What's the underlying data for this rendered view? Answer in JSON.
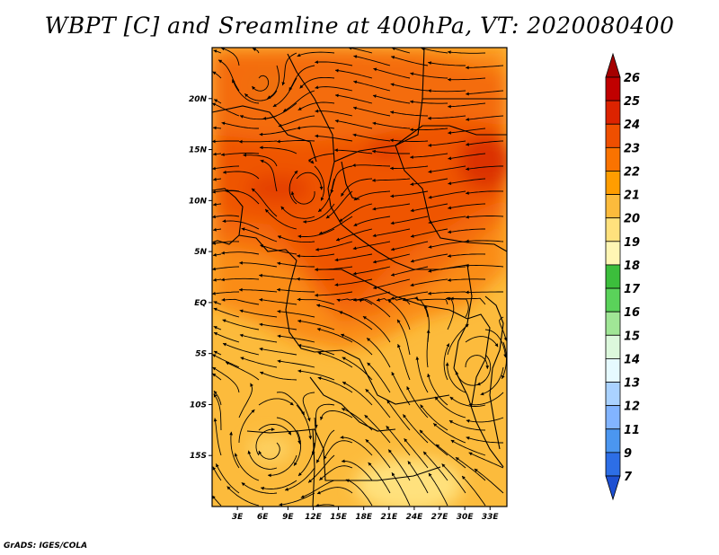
{
  "title": "WBPT [C] and Sreamline at 400hPa, VT: 2020080400",
  "credit": "GrADS: IGES/COLA",
  "map": {
    "lon_range": [
      0,
      35
    ],
    "lat_range": [
      -20,
      25
    ],
    "lon_ticks": [
      {
        "value": 3,
        "label": "3E"
      },
      {
        "value": 6,
        "label": "6E"
      },
      {
        "value": 9,
        "label": "9E"
      },
      {
        "value": 12,
        "label": "12E"
      },
      {
        "value": 15,
        "label": "15E"
      },
      {
        "value": 18,
        "label": "18E"
      },
      {
        "value": 21,
        "label": "21E"
      },
      {
        "value": 24,
        "label": "24E"
      },
      {
        "value": 27,
        "label": "27E"
      },
      {
        "value": 30,
        "label": "30E"
      },
      {
        "value": 33,
        "label": "33E"
      }
    ],
    "lat_ticks": [
      {
        "value": 20,
        "label": "20N"
      },
      {
        "value": 15,
        "label": "15N"
      },
      {
        "value": 10,
        "label": "10N"
      },
      {
        "value": 5,
        "label": "5N"
      },
      {
        "value": 0,
        "label": "EQ"
      },
      {
        "value": -5,
        "label": "5S"
      },
      {
        "value": -10,
        "label": "10S"
      },
      {
        "value": -15,
        "label": "15S"
      }
    ]
  },
  "colorbar": {
    "levels": [
      {
        "label": "26",
        "color": "#a50000"
      },
      {
        "label": "25",
        "color": "#c00000"
      },
      {
        "label": "24",
        "color": "#dc2300"
      },
      {
        "label": "23",
        "color": "#ef4f00"
      },
      {
        "label": "22",
        "color": "#fa7300"
      },
      {
        "label": "21",
        "color": "#ff9d00"
      },
      {
        "label": "20",
        "color": "#fcbb3c"
      },
      {
        "label": "19",
        "color": "#ffe17d"
      },
      {
        "label": "18",
        "color": "#fff6b4"
      },
      {
        "label": "17",
        "color": "#3cbe3c"
      },
      {
        "label": "16",
        "color": "#5ad25a"
      },
      {
        "label": "15",
        "color": "#a0e696"
      },
      {
        "label": "14",
        "color": "#dcf8dc"
      },
      {
        "label": "13",
        "color": "#e6faff"
      },
      {
        "label": "12",
        "color": "#aad2ff"
      },
      {
        "label": "11",
        "color": "#82b4ff"
      },
      {
        "label": "9",
        "color": "#4b96f0"
      },
      {
        "label": "7",
        "color": "#2d6ee6"
      }
    ],
    "bottom_color": "#1e50d2"
  }
}
